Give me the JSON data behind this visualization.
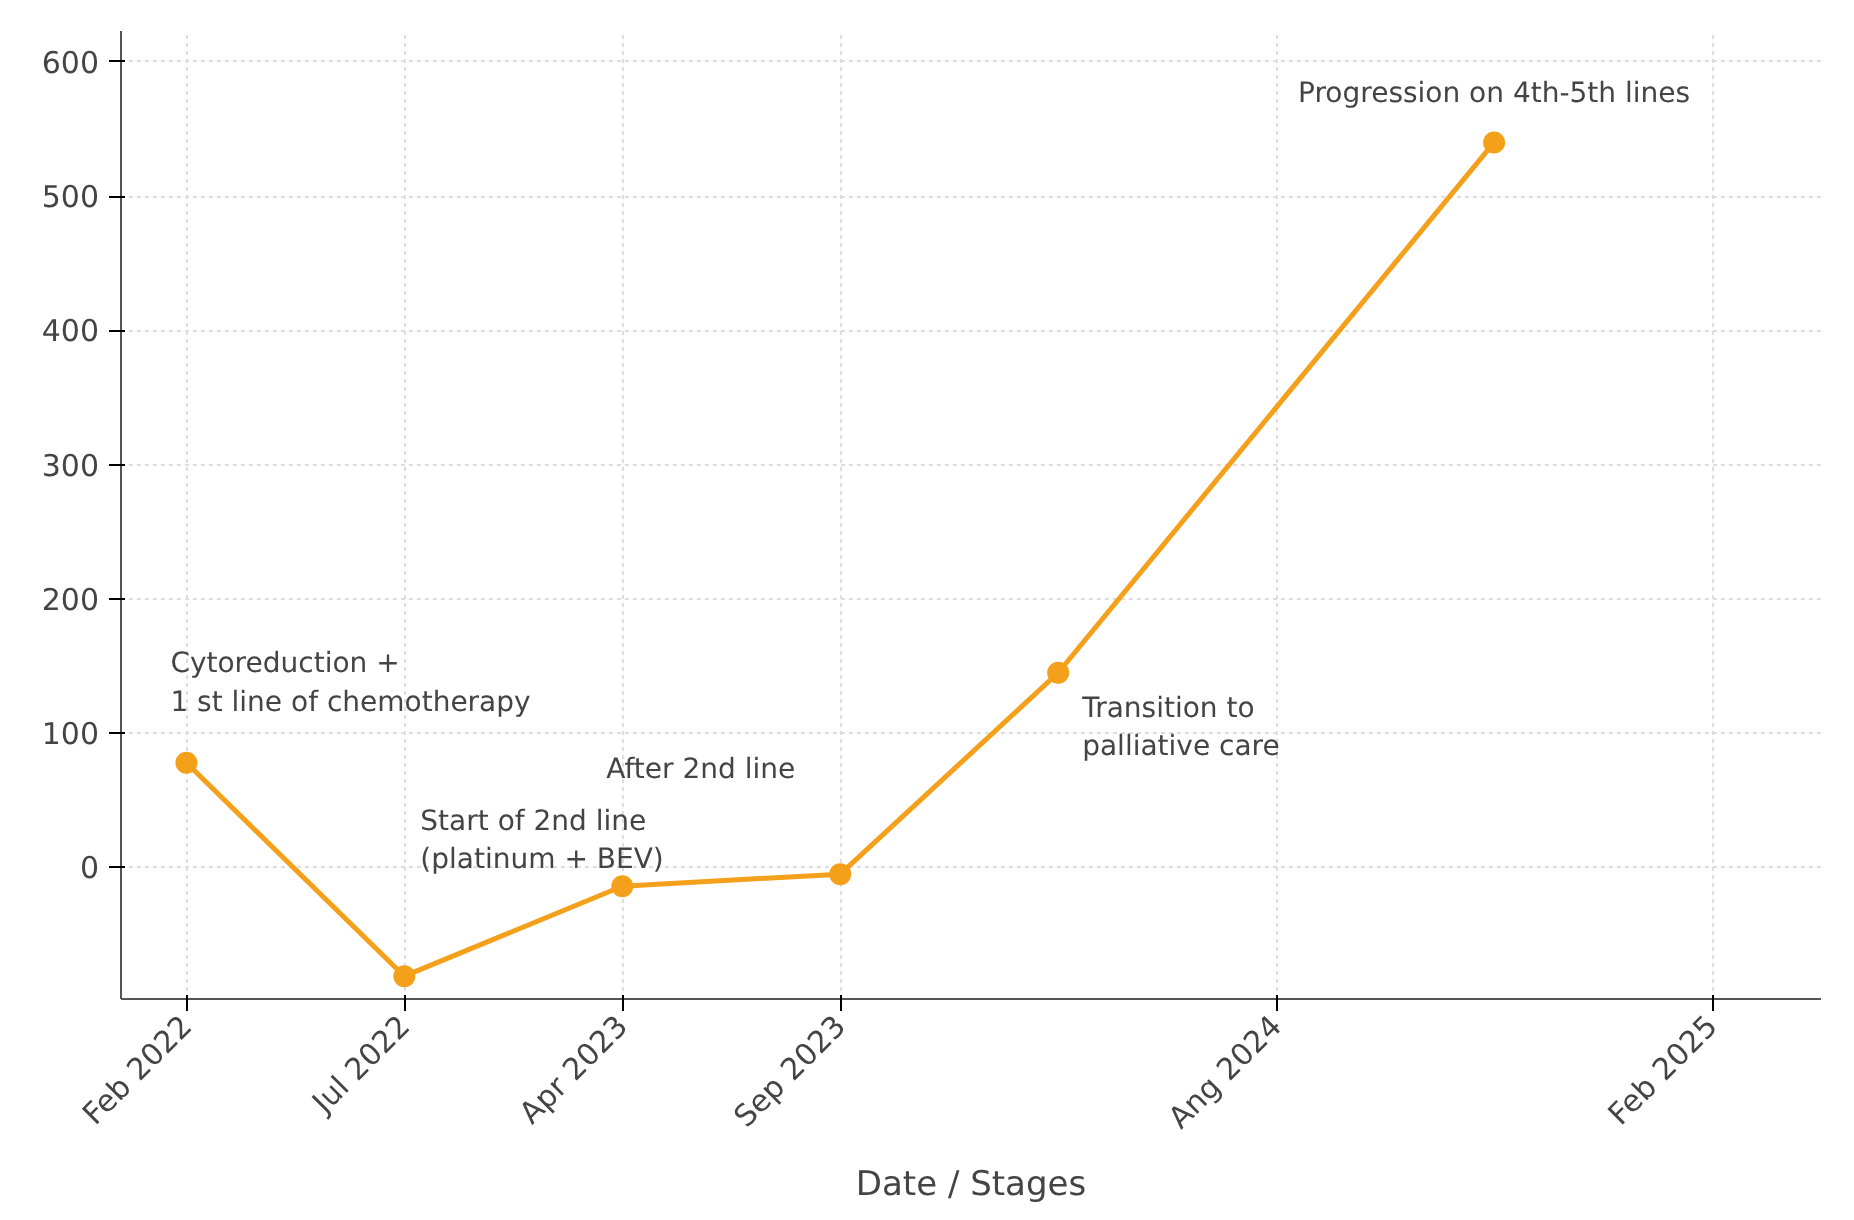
{
  "chart_data": {
    "type": "line",
    "xlabel": "Date / Stages",
    "categories": [
      "Feb 2022",
      "Jul 2022",
      "Apr 2023",
      "Sep 2023",
      null,
      "Ang 2024",
      null,
      "Feb 2025"
    ],
    "values": [
      78,
      -81,
      -14,
      -5,
      145,
      null,
      540,
      null
    ],
    "color": "#f5a01a",
    "marker": "circle",
    "line_style": "solid",
    "ylim": [
      -98,
      623
    ],
    "yticks": [
      0,
      100,
      200,
      300,
      400,
      500,
      600
    ],
    "grid": true,
    "annotations": [
      "Cytoreduction +\n1 st line of chemotherapy",
      "Start of 2nd line\n(platinum + BEV)",
      "After 2nd line",
      "Transition to\npalliative care",
      "Progression on 4th-5th lines"
    ]
  }
}
